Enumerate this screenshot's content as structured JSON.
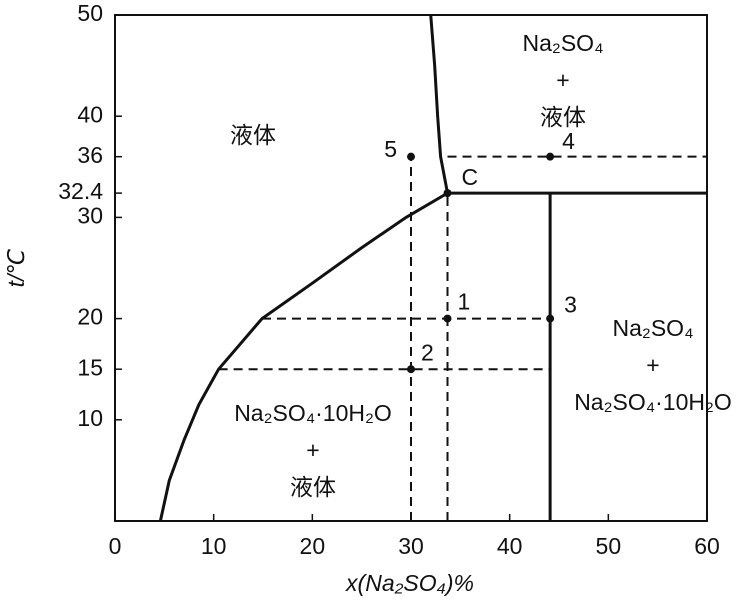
{
  "chart_data": {
    "type": "line",
    "xlabel": "x(Na₂SO₄)%",
    "ylabel": "t/℃",
    "xlim": [
      0,
      60
    ],
    "ylim": [
      0,
      50
    ],
    "xticks": [
      0,
      10,
      20,
      30,
      40,
      50,
      60
    ],
    "yticks": [
      10,
      15,
      20,
      30,
      32.4,
      36,
      40,
      50
    ],
    "color": "#111111",
    "curves": [
      {
        "style": "solid",
        "x": [
          4.6,
          5.5,
          7,
          8.5,
          10.5,
          14.9,
          20,
          25,
          29.5,
          33.7
        ],
        "values": [
          0,
          4,
          8,
          11.5,
          15,
          20,
          23.5,
          27,
          30,
          32.4
        ]
      },
      {
        "style": "solid",
        "x": [
          33.7,
          33,
          32.7,
          32.4,
          32
        ],
        "values": [
          32.4,
          36,
          40,
          45,
          50
        ]
      },
      {
        "style": "solid",
        "x": [
          33.7,
          60
        ],
        "values": [
          32.4,
          32.4
        ]
      },
      {
        "style": "solid",
        "x": [
          44.1,
          44.1
        ],
        "values": [
          0,
          32.4
        ]
      },
      {
        "style": "dashed",
        "x": [
          30,
          30
        ],
        "values": [
          0,
          36
        ]
      },
      {
        "style": "dashed",
        "x": [
          33.7,
          33.7
        ],
        "values": [
          0,
          32.4
        ]
      },
      {
        "style": "dashed",
        "x": [
          14.9,
          44.1
        ],
        "values": [
          20,
          20
        ]
      },
      {
        "style": "dashed",
        "x": [
          10.5,
          44.1
        ],
        "values": [
          15,
          15
        ]
      },
      {
        "style": "dashed",
        "x": [
          33.7,
          60
        ],
        "values": [
          36,
          36
        ]
      }
    ],
    "points": {
      "labels": [
        "1",
        "2",
        "3",
        "4",
        "5",
        "C"
      ],
      "x": [
        33.7,
        30,
        44.1,
        44.1,
        30,
        33.7
      ],
      "values": [
        20,
        15,
        20,
        36,
        36,
        32.4
      ]
    },
    "regions": [
      [
        "液体"
      ],
      [
        "Na₂SO₄",
        "+",
        "液体"
      ],
      [
        "Na₂SO₄",
        "+",
        "Na₂SO₄·10H₂O"
      ],
      [
        "Na₂SO₄·10H₂O",
        "+",
        "液体"
      ]
    ]
  }
}
